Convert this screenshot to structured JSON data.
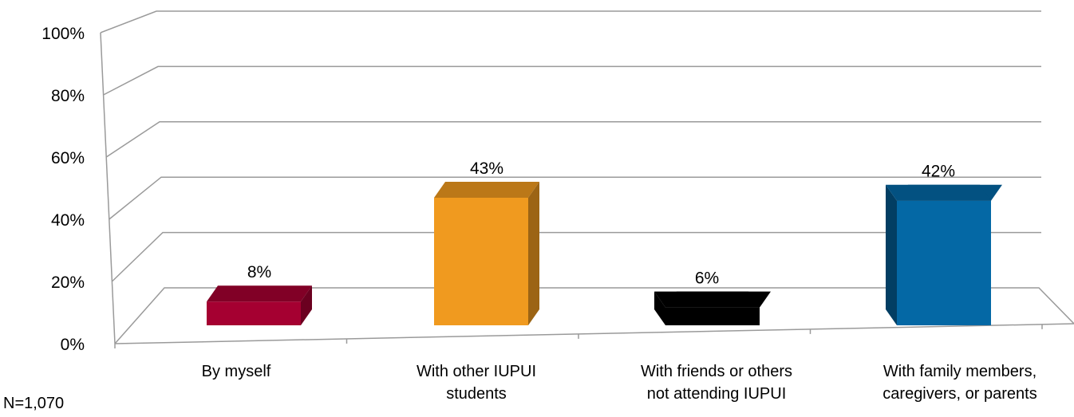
{
  "chart_data": {
    "type": "bar",
    "title": "",
    "xlabel": "",
    "ylabel": "",
    "ylim": [
      0,
      100
    ],
    "yticks": [
      "0%",
      "20%",
      "40%",
      "60%",
      "80%",
      "100%"
    ],
    "grid": true,
    "categories": [
      [
        "By myself"
      ],
      [
        "With other IUPUI",
        "students"
      ],
      [
        "With friends or others",
        "not attending IUPUI"
      ],
      [
        "With family members,",
        "caregivers, or parents"
      ]
    ],
    "values": [
      8,
      43,
      6,
      42
    ],
    "data_labels": [
      "8%",
      "43%",
      "6%",
      "42%"
    ],
    "colors": [
      "#a50031",
      "#f09a1f",
      "#000000",
      "#0468a5"
    ]
  },
  "note": "N=1,070"
}
